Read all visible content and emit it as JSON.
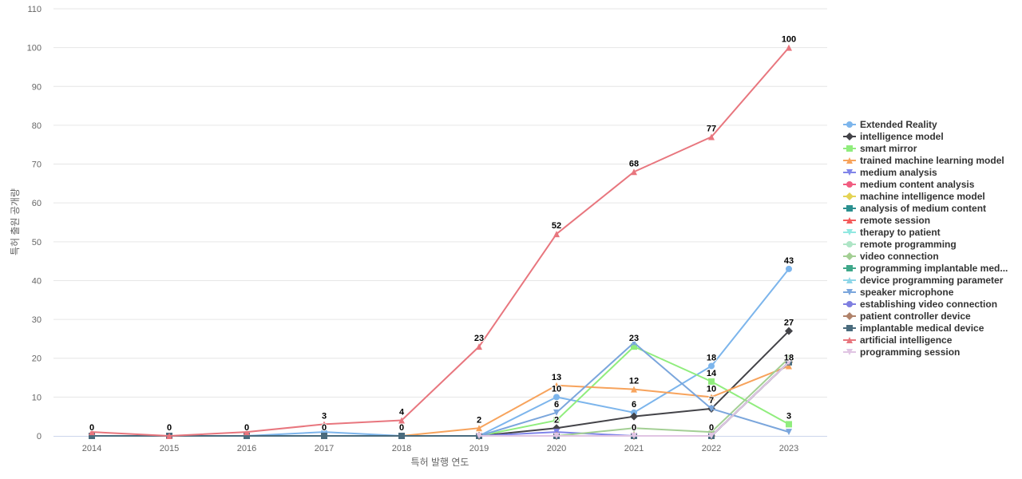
{
  "chart_data": {
    "type": "line",
    "xlabel": "특허 발행 연도",
    "ylabel": "특허 출원 공개량",
    "ylim": [
      0,
      110
    ],
    "yticks": [
      0,
      10,
      20,
      30,
      40,
      50,
      60,
      70,
      80,
      90,
      100,
      110
    ],
    "categories": [
      "2014",
      "2015",
      "2016",
      "2017",
      "2018",
      "2019",
      "2020",
      "2021",
      "2022",
      "2023"
    ],
    "grid": true,
    "legend_position": "right",
    "series": [
      {
        "name": "Extended Reality",
        "color": "#7cb5ec",
        "marker": "circle",
        "values": [
          0,
          0,
          0,
          1,
          0,
          0,
          10,
          6,
          18,
          43
        ]
      },
      {
        "name": "intelligence model",
        "color": "#434348",
        "marker": "diamond",
        "values": [
          null,
          null,
          null,
          null,
          null,
          0,
          2,
          5,
          7,
          27
        ]
      },
      {
        "name": "smart mirror",
        "color": "#90ed7d",
        "marker": "square",
        "values": [
          null,
          null,
          null,
          null,
          null,
          0,
          4,
          23,
          14,
          3
        ]
      },
      {
        "name": "trained machine learning model",
        "color": "#f7a35c",
        "marker": "triangle",
        "values": [
          null,
          null,
          null,
          null,
          0,
          2,
          13,
          12,
          10,
          18
        ]
      },
      {
        "name": "medium analysis",
        "color": "#8085e9",
        "marker": "triangle-down",
        "values": [
          null,
          null,
          null,
          null,
          null,
          0,
          1,
          0,
          0,
          19
        ]
      },
      {
        "name": "medium content analysis",
        "color": "#f15c80",
        "marker": "circle",
        "values": [
          0,
          0,
          0,
          0,
          0,
          0,
          0,
          0,
          0,
          19
        ]
      },
      {
        "name": "machine intelligence model",
        "color": "#e4d354",
        "marker": "diamond",
        "values": [
          null,
          null,
          null,
          null,
          null,
          0,
          0,
          0,
          0,
          19
        ]
      },
      {
        "name": "analysis of medium content",
        "color": "#2b908f",
        "marker": "square",
        "values": [
          0,
          0,
          0,
          0,
          0,
          0,
          0,
          0,
          0,
          19
        ]
      },
      {
        "name": "remote session",
        "color": "#f45b5b",
        "marker": "triangle",
        "values": [
          null,
          null,
          null,
          null,
          null,
          0,
          0,
          0,
          0,
          19
        ]
      },
      {
        "name": "therapy to patient",
        "color": "#91e8e1",
        "marker": "triangle-down",
        "values": [
          null,
          null,
          null,
          null,
          null,
          0,
          0,
          0,
          0,
          19
        ]
      },
      {
        "name": "remote programming",
        "color": "#aee5c6",
        "marker": "circle",
        "values": [
          null,
          null,
          null,
          null,
          null,
          0,
          0,
          0,
          0,
          19
        ]
      },
      {
        "name": "video connection",
        "color": "#a3cf94",
        "marker": "diamond",
        "values": [
          null,
          null,
          null,
          null,
          null,
          0,
          0,
          2,
          1,
          20
        ]
      },
      {
        "name": "programming implantable med...",
        "color": "#3fa88a",
        "marker": "square",
        "values": [
          null,
          null,
          null,
          null,
          null,
          0,
          0,
          0,
          0,
          19
        ]
      },
      {
        "name": "device programming parameter",
        "color": "#8ed6e8",
        "marker": "triangle",
        "values": [
          null,
          null,
          null,
          null,
          null,
          0,
          0,
          0,
          0,
          19
        ]
      },
      {
        "name": "speaker microphone",
        "color": "#7ba6dc",
        "marker": "triangle-down",
        "values": [
          null,
          null,
          null,
          null,
          null,
          0,
          6,
          24,
          7,
          1
        ]
      },
      {
        "name": "establishing video connection",
        "color": "#7e7ee0",
        "marker": "circle",
        "values": [
          null,
          null,
          null,
          null,
          null,
          0,
          0,
          0,
          0,
          19
        ]
      },
      {
        "name": "patient controller device",
        "color": "#b0826a",
        "marker": "diamond",
        "values": [
          null,
          null,
          null,
          null,
          null,
          0,
          0,
          0,
          0,
          19
        ]
      },
      {
        "name": "implantable medical device",
        "color": "#4a6b7d",
        "marker": "square",
        "values": [
          0,
          0,
          0,
          0,
          0,
          0,
          0,
          0,
          0,
          19
        ]
      },
      {
        "name": "artificial intelligence",
        "color": "#e8767e",
        "marker": "triangle",
        "values": [
          1,
          0,
          1,
          3,
          4,
          23,
          52,
          68,
          77,
          100
        ]
      },
      {
        "name": "programming session",
        "color": "#e0c5e3",
        "marker": "triangle-down",
        "values": [
          null,
          null,
          null,
          null,
          null,
          0,
          0,
          0,
          0,
          19
        ]
      }
    ],
    "data_labels": [
      {
        "x": "2014",
        "value": "0"
      },
      {
        "x": "2015",
        "value": "0"
      },
      {
        "x": "2016",
        "value": "0"
      },
      {
        "x": "2017",
        "value": "3"
      },
      {
        "x": "2017",
        "value": "0"
      },
      {
        "x": "2018",
        "value": "4"
      },
      {
        "x": "2018",
        "value": "0"
      },
      {
        "x": "2019",
        "value": "23"
      },
      {
        "x": "2019",
        "value": "2"
      },
      {
        "x": "2020",
        "value": "52"
      },
      {
        "x": "2020",
        "value": "13"
      },
      {
        "x": "2020",
        "value": "10"
      },
      {
        "x": "2020",
        "value": "6"
      },
      {
        "x": "2020",
        "value": "2"
      },
      {
        "x": "2021",
        "value": "68"
      },
      {
        "x": "2021",
        "value": "23"
      },
      {
        "x": "2021",
        "value": "12"
      },
      {
        "x": "2021",
        "value": "6"
      },
      {
        "x": "2021",
        "value": "0"
      },
      {
        "x": "2022",
        "value": "77"
      },
      {
        "x": "2022",
        "value": "18"
      },
      {
        "x": "2022",
        "value": "14"
      },
      {
        "x": "2022",
        "value": "10"
      },
      {
        "x": "2022",
        "value": "7"
      },
      {
        "x": "2022",
        "value": "0"
      },
      {
        "x": "2023",
        "value": "100"
      },
      {
        "x": "2023",
        "value": "43"
      },
      {
        "x": "2023",
        "value": "27"
      },
      {
        "x": "2023",
        "value": "18"
      },
      {
        "x": "2023",
        "value": "3"
      }
    ]
  }
}
